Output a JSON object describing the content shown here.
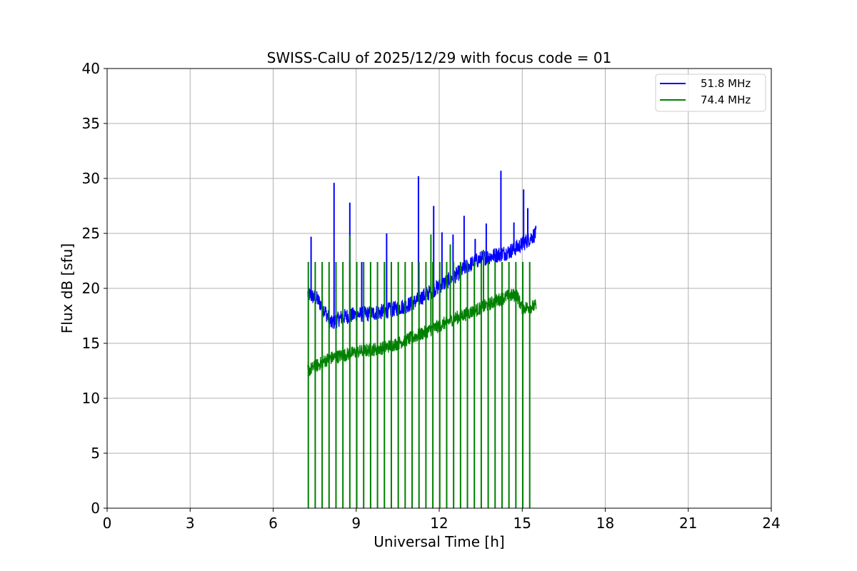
{
  "chart_data": {
    "type": "line",
    "title": "SWISS-CalU of 2025/12/29 with focus code = 01",
    "xlabel": "Universal Time [h]",
    "ylabel": "Flux dB [sfu]",
    "xlim": [
      0,
      24
    ],
    "ylim": [
      0,
      40
    ],
    "xticks": [
      0,
      3,
      6,
      9,
      12,
      15,
      18,
      21,
      24
    ],
    "yticks": [
      0,
      5,
      10,
      15,
      20,
      25,
      30,
      35,
      40
    ],
    "grid": true,
    "legend_position": "top-right",
    "series": [
      {
        "name": "51.8 MHz",
        "color": "#0000ff",
        "noise": 0.7,
        "baseline": [
          [
            7.25,
            19.5
          ],
          [
            7.6,
            19.0
          ],
          [
            7.9,
            17.8
          ],
          [
            8.1,
            16.8
          ],
          [
            8.5,
            17.4
          ],
          [
            9.0,
            17.6
          ],
          [
            9.5,
            17.7
          ],
          [
            10.0,
            17.9
          ],
          [
            10.5,
            18.2
          ],
          [
            11.0,
            18.6
          ],
          [
            11.5,
            19.4
          ],
          [
            12.0,
            20.2
          ],
          [
            12.5,
            21.0
          ],
          [
            13.0,
            22.0
          ],
          [
            13.5,
            22.7
          ],
          [
            14.0,
            23.0
          ],
          [
            14.5,
            23.3
          ],
          [
            15.0,
            24.0
          ],
          [
            15.5,
            25.0
          ]
        ],
        "spikes": [
          [
            7.37,
            24.7
          ],
          [
            8.2,
            29.6
          ],
          [
            8.77,
            27.8
          ],
          [
            9.2,
            22.4
          ],
          [
            10.1,
            25.0
          ],
          [
            11.25,
            30.2
          ],
          [
            11.8,
            27.5
          ],
          [
            12.1,
            25.1
          ],
          [
            12.5,
            24.9
          ],
          [
            12.9,
            26.6
          ],
          [
            13.3,
            24.5
          ],
          [
            13.7,
            25.9
          ],
          [
            14.23,
            30.7
          ],
          [
            14.7,
            26.0
          ],
          [
            15.05,
            29.0
          ],
          [
            15.2,
            27.3
          ]
        ]
      },
      {
        "name": "74.4 MHz",
        "color": "#008000",
        "noise": 0.6,
        "baseline": [
          [
            7.25,
            12.5
          ],
          [
            7.6,
            13.0
          ],
          [
            8.0,
            13.6
          ],
          [
            8.5,
            13.9
          ],
          [
            9.0,
            14.2
          ],
          [
            9.5,
            14.4
          ],
          [
            10.0,
            14.6
          ],
          [
            10.5,
            15.0
          ],
          [
            11.0,
            15.5
          ],
          [
            11.5,
            16.0
          ],
          [
            12.0,
            16.6
          ],
          [
            12.5,
            17.2
          ],
          [
            13.0,
            17.7
          ],
          [
            13.5,
            18.2
          ],
          [
            14.0,
            18.8
          ],
          [
            14.5,
            19.3
          ],
          [
            14.8,
            19.4
          ],
          [
            15.0,
            18.2
          ],
          [
            15.5,
            18.4
          ]
        ],
        "dropouts": [
          7.27,
          7.52,
          7.77,
          8.02,
          8.27,
          8.52,
          8.77,
          9.02,
          9.27,
          9.52,
          9.77,
          10.02,
          10.27,
          10.52,
          10.77,
          11.02,
          11.27,
          11.52,
          11.77,
          12.02,
          12.27,
          12.52,
          12.77,
          13.02,
          13.27,
          13.52,
          13.77,
          14.02,
          14.27,
          14.52,
          14.77,
          15.02,
          15.27
        ],
        "spike_top": 22.4,
        "spikes": [
          [
            8.77,
            24.8
          ],
          [
            11.7,
            24.9
          ],
          [
            12.4,
            24.0
          ],
          [
            13.6,
            23.5
          ]
        ]
      }
    ]
  }
}
